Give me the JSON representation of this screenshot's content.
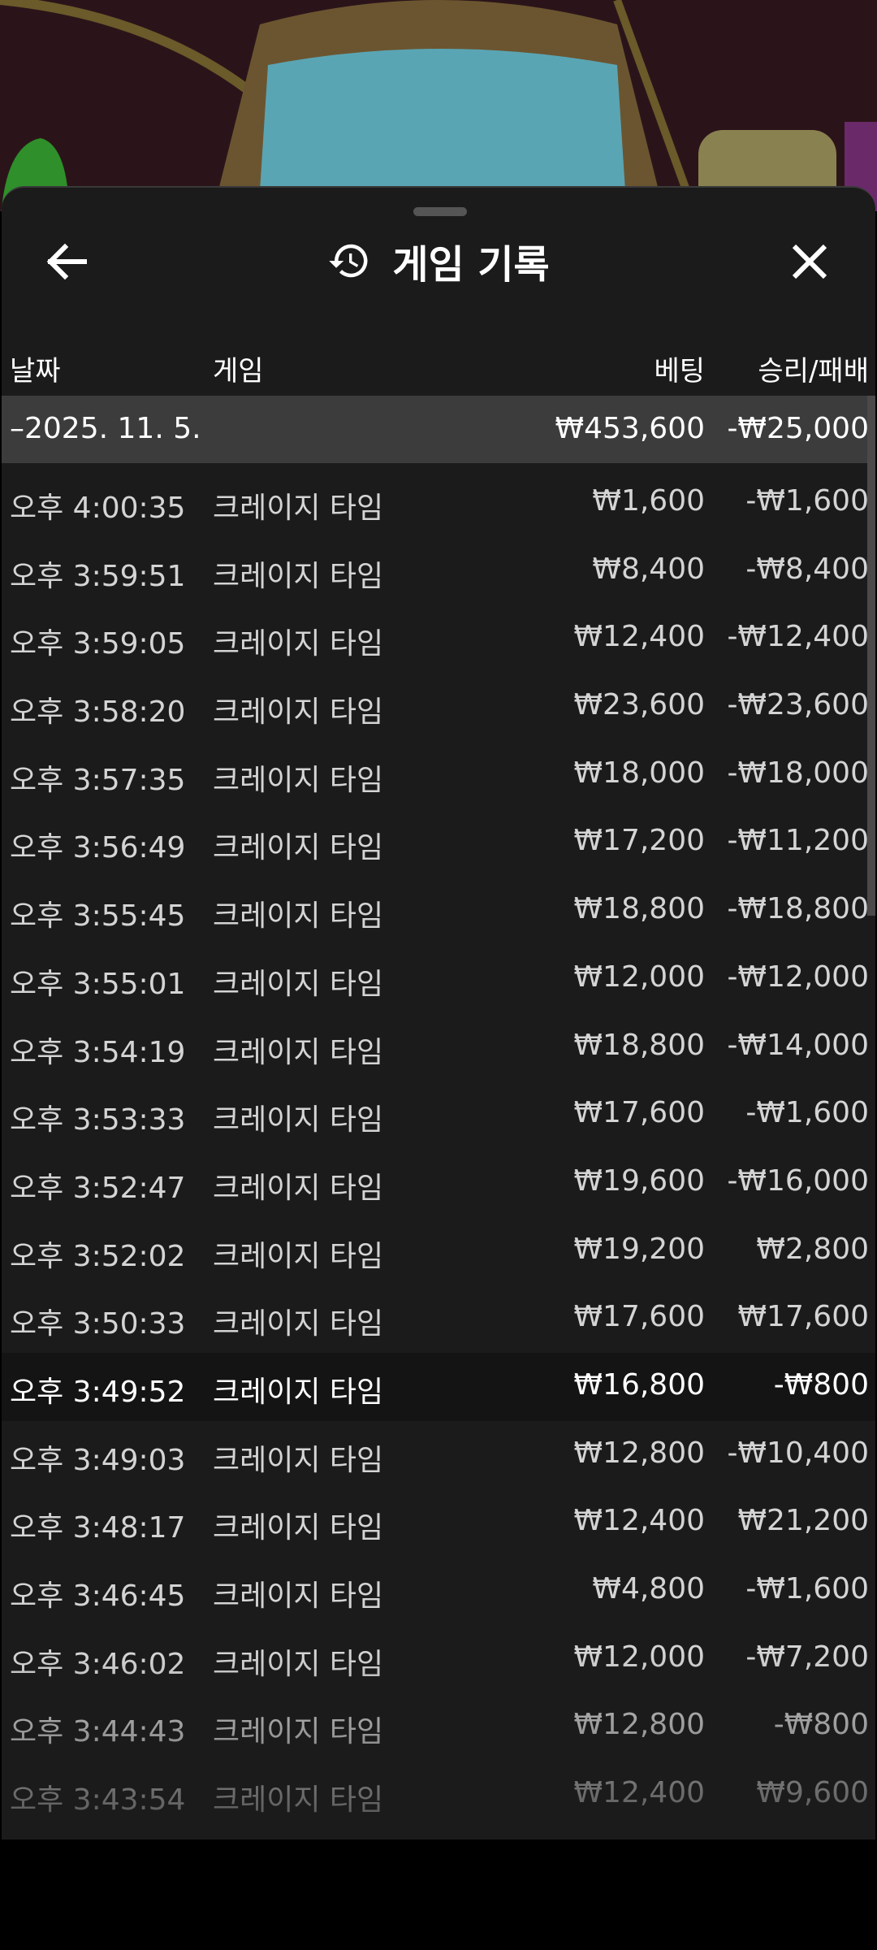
{
  "header": {
    "title": "게임 기록",
    "back_icon": "arrow-left-icon",
    "history_icon": "history-icon",
    "close_icon": "close-icon"
  },
  "columns": {
    "date": "날짜",
    "game": "게임",
    "bet": "베팅",
    "result": "승리/패배"
  },
  "date_group": {
    "label": "–2025. 11. 5.",
    "bet_total": "₩453,600",
    "result_total": "-₩25,000"
  },
  "highlight_color": "#141414",
  "rows": [
    {
      "time": "오후 4:00:35",
      "game": "크레이지 타임",
      "bet": "₩1,600",
      "result": "-₩1,600"
    },
    {
      "time": "오후 3:59:51",
      "game": "크레이지 타임",
      "bet": "₩8,400",
      "result": "-₩8,400"
    },
    {
      "time": "오후 3:59:05",
      "game": "크레이지 타임",
      "bet": "₩12,400",
      "result": "-₩12,400"
    },
    {
      "time": "오후 3:58:20",
      "game": "크레이지 타임",
      "bet": "₩23,600",
      "result": "-₩23,600"
    },
    {
      "time": "오후 3:57:35",
      "game": "크레이지 타임",
      "bet": "₩18,000",
      "result": "-₩18,000"
    },
    {
      "time": "오후 3:56:49",
      "game": "크레이지 타임",
      "bet": "₩17,200",
      "result": "-₩11,200"
    },
    {
      "time": "오후 3:55:45",
      "game": "크레이지 타임",
      "bet": "₩18,800",
      "result": "-₩18,800"
    },
    {
      "time": "오후 3:55:01",
      "game": "크레이지 타임",
      "bet": "₩12,000",
      "result": "-₩12,000"
    },
    {
      "time": "오후 3:54:19",
      "game": "크레이지 타임",
      "bet": "₩18,800",
      "result": "-₩14,000"
    },
    {
      "time": "오후 3:53:33",
      "game": "크레이지 타임",
      "bet": "₩17,600",
      "result": "-₩1,600"
    },
    {
      "time": "오후 3:52:47",
      "game": "크레이지 타임",
      "bet": "₩19,600",
      "result": "-₩16,000"
    },
    {
      "time": "오후 3:52:02",
      "game": "크레이지 타임",
      "bet": "₩19,200",
      "result": "₩2,800"
    },
    {
      "time": "오후 3:50:33",
      "game": "크레이지 타임",
      "bet": "₩17,600",
      "result": "₩17,600"
    },
    {
      "time": "오후 3:49:52",
      "game": "크레이지 타임",
      "bet": "₩16,800",
      "result": "-₩800",
      "highlighted": true
    },
    {
      "time": "오후 3:49:03",
      "game": "크레이지 타임",
      "bet": "₩12,800",
      "result": "-₩10,400"
    },
    {
      "time": "오후 3:48:17",
      "game": "크레이지 타임",
      "bet": "₩12,400",
      "result": "₩21,200"
    },
    {
      "time": "오후 3:46:45",
      "game": "크레이지 타임",
      "bet": "₩4,800",
      "result": "-₩1,600"
    },
    {
      "time": "오후 3:46:02",
      "game": "크레이지 타임",
      "bet": "₩12,000",
      "result": "-₩7,200"
    },
    {
      "time": "오후 3:44:43",
      "game": "크레이지 타임",
      "bet": "₩12,800",
      "result": "-₩800"
    },
    {
      "time": "오후 3:43:54",
      "game": "크레이지 타임",
      "bet": "₩12,400",
      "result": "₩9,600"
    }
  ]
}
